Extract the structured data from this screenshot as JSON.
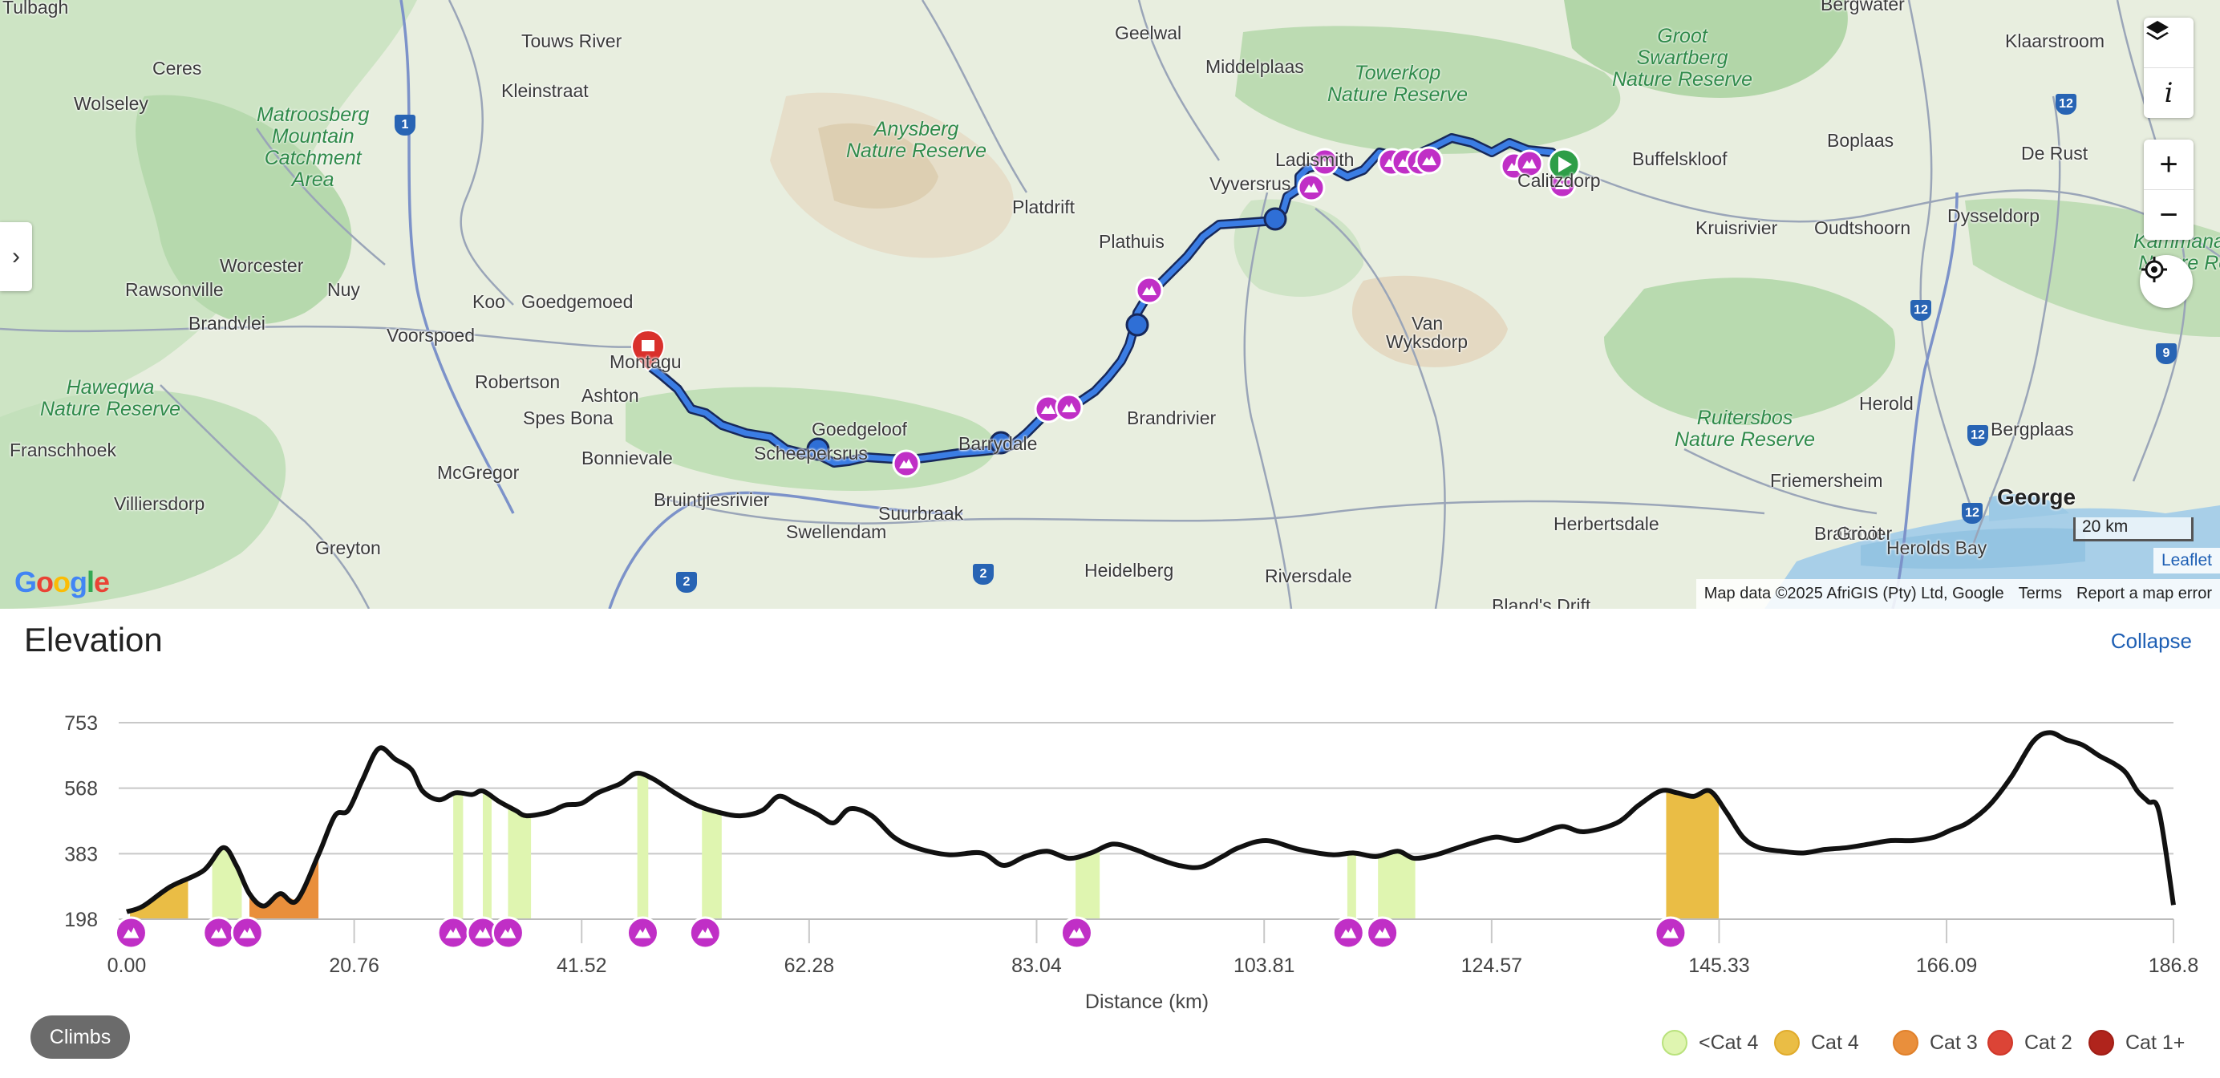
{
  "map": {
    "places": [
      {
        "name": "Tulbagh"
      },
      {
        "name": "Touws River"
      },
      {
        "name": "Geelwal"
      },
      {
        "name": "Bergwater"
      },
      {
        "name": "Ceres"
      },
      {
        "name": "Wolseley"
      },
      {
        "name": "Kleinstraat"
      },
      {
        "name": "Middelplaas"
      },
      {
        "name": "Klaarstroom"
      },
      {
        "name": "Buffelskloof"
      },
      {
        "name": "Boplaas"
      },
      {
        "name": "De Rust"
      },
      {
        "name": "Platdrift"
      },
      {
        "name": "Vyversrus"
      },
      {
        "name": "Ladismith"
      },
      {
        "name": "Calitzdorp"
      },
      {
        "name": "Plathuis"
      },
      {
        "name": "Kruisrivier"
      },
      {
        "name": "Oudtshoorn"
      },
      {
        "name": "Dysseldorp"
      },
      {
        "name": "Worcester"
      },
      {
        "name": "Rawsonville"
      },
      {
        "name": "Nuy"
      },
      {
        "name": "Koo"
      },
      {
        "name": "Goedgemoed"
      },
      {
        "name": "Brandvlei"
      },
      {
        "name": "Voorspoed"
      },
      {
        "name": "Van"
      },
      {
        "name": "Wyksdorp"
      },
      {
        "name": "Robertson"
      },
      {
        "name": "Montagu"
      },
      {
        "name": "Ashton"
      },
      {
        "name": "Spes Bona"
      },
      {
        "name": "Franschhoek"
      },
      {
        "name": "Goedgeloof"
      },
      {
        "name": "Scheepersrus"
      },
      {
        "name": "Barrydale"
      },
      {
        "name": "Brandrivier"
      },
      {
        "name": "Herold"
      },
      {
        "name": "Bergplaas"
      },
      {
        "name": "McGregor"
      },
      {
        "name": "Bonnievale"
      },
      {
        "name": "Villiersdorp"
      },
      {
        "name": "Friemersheim"
      },
      {
        "name": "Bruintjiesrivier"
      },
      {
        "name": "Suurbraak"
      },
      {
        "name": "Swellendam"
      },
      {
        "name": "George"
      },
      {
        "name": "Greyton"
      },
      {
        "name": "Herbertsdale"
      },
      {
        "name": "Brakrivier"
      },
      {
        "name": "Groot"
      },
      {
        "name": "Herolds Bay"
      },
      {
        "name": "Heidelberg"
      },
      {
        "name": "Riversdale"
      },
      {
        "name": "Bland's Drift"
      }
    ],
    "parks": [
      {
        "name": "Matroosberg\nMountain\nCatchment\nArea"
      },
      {
        "name": "Anysberg\nNature Reserve"
      },
      {
        "name": "Towerkop\nNature Reserve"
      },
      {
        "name": "Groot\nSwartberg\nNature Reserve"
      },
      {
        "name": "Kammanass\nNature Res"
      },
      {
        "name": "Haweqwa\nNature Reserve"
      },
      {
        "name": "Ruitersbos\nNature Reserve"
      }
    ],
    "shields": [
      "1",
      "12",
      "12",
      "9",
      "12",
      "12",
      "2",
      "2"
    ],
    "controls": {
      "layers_icon": "layers-icon",
      "info_label": "i",
      "zoom_in": "+",
      "zoom_out": "−",
      "locate_icon": "locate-icon",
      "sidebar_toggle": "›"
    },
    "scale_label": "20 km",
    "leaflet_label": "Leaflet",
    "google_logo": "Google",
    "attribution": {
      "data": "Map data ©2025 AfriGIS (Pty) Ltd, Google",
      "terms": "Terms",
      "report": "Report a map error"
    },
    "route_color": "#2f6fd6",
    "climb_marker_color": "#c02fc6",
    "start_color": "#2e9e48",
    "end_color": "#d9302c"
  },
  "elevation": {
    "title": "Elevation",
    "collapse_label": "Collapse",
    "climbs_button": "Climbs",
    "legend": [
      {
        "label": "<Cat 4",
        "color": "#dff5b0",
        "border": "#b9e27c"
      },
      {
        "label": "Cat 4",
        "color": "#eabd45",
        "border": "#e0ab2c"
      },
      {
        "label": "Cat 3",
        "color": "#e98f3c",
        "border": "#e0802a"
      },
      {
        "label": "Cat 2",
        "color": "#dc4436",
        "border": "#d0382a"
      },
      {
        "label": "Cat 1+",
        "color": "#b0241c",
        "border": "#a01e16"
      }
    ]
  },
  "chart_data": {
    "type": "area",
    "xlabel": "Distance (km)",
    "ylabel": "",
    "xlim": [
      0,
      186.8
    ],
    "ylim": [
      198,
      753
    ],
    "x_ticks": [
      "0.00",
      "20.76",
      "41.52",
      "62.28",
      "83.04",
      "103.81",
      "124.57",
      "145.33",
      "166.09",
      "186.8"
    ],
    "y_ticks": [
      "753",
      "568",
      "383",
      "198"
    ],
    "grid": true,
    "legend_position": "bottom-right",
    "profile": [
      [
        0,
        219
      ],
      [
        1.5,
        235
      ],
      [
        4,
        290
      ],
      [
        7,
        335
      ],
      [
        8.8,
        400
      ],
      [
        10,
        350
      ],
      [
        11.2,
        270
      ],
      [
        12.5,
        235
      ],
      [
        14,
        270
      ],
      [
        15.5,
        250
      ],
      [
        17.5,
        380
      ],
      [
        19,
        490
      ],
      [
        20.2,
        505
      ],
      [
        21.5,
        590
      ],
      [
        23,
        680
      ],
      [
        24.5,
        650
      ],
      [
        26,
        620
      ],
      [
        27,
        560
      ],
      [
        28.5,
        535
      ],
      [
        30,
        555
      ],
      [
        31.5,
        550
      ],
      [
        32.5,
        560
      ],
      [
        34,
        530
      ],
      [
        35.5,
        505
      ],
      [
        36.5,
        490
      ],
      [
        38.5,
        500
      ],
      [
        40,
        520
      ],
      [
        41.5,
        525
      ],
      [
        43,
        555
      ],
      [
        45,
        580
      ],
      [
        46.5,
        610
      ],
      [
        48,
        595
      ],
      [
        50,
        555
      ],
      [
        52,
        520
      ],
      [
        54,
        500
      ],
      [
        56,
        490
      ],
      [
        58,
        505
      ],
      [
        59.5,
        545
      ],
      [
        61,
        525
      ],
      [
        63,
        495
      ],
      [
        64.5,
        470
      ],
      [
        66,
        510
      ],
      [
        68,
        490
      ],
      [
        70,
        430
      ],
      [
        72,
        400
      ],
      [
        75,
        380
      ],
      [
        78,
        385
      ],
      [
        80,
        350
      ],
      [
        82,
        375
      ],
      [
        84,
        390
      ],
      [
        86,
        370
      ],
      [
        88,
        385
      ],
      [
        90,
        410
      ],
      [
        92,
        395
      ],
      [
        94,
        370
      ],
      [
        96,
        350
      ],
      [
        98,
        345
      ],
      [
        100,
        375
      ],
      [
        101.5,
        400
      ],
      [
        104,
        420
      ],
      [
        107,
        395
      ],
      [
        110,
        380
      ],
      [
        112,
        385
      ],
      [
        114,
        375
      ],
      [
        116,
        390
      ],
      [
        117.5,
        370
      ],
      [
        119.5,
        380
      ],
      [
        121,
        395
      ],
      [
        123,
        415
      ],
      [
        125,
        430
      ],
      [
        127,
        420
      ],
      [
        129,
        440
      ],
      [
        131,
        460
      ],
      [
        133,
        445
      ],
      [
        136,
        470
      ],
      [
        138,
        520
      ],
      [
        140,
        560
      ],
      [
        141.5,
        555
      ],
      [
        143,
        545
      ],
      [
        144.5,
        560
      ],
      [
        146,
        500
      ],
      [
        147.5,
        430
      ],
      [
        149,
        400
      ],
      [
        151,
        390
      ],
      [
        153,
        385
      ],
      [
        155,
        395
      ],
      [
        157,
        400
      ],
      [
        159,
        410
      ],
      [
        161,
        420
      ],
      [
        163,
        420
      ],
      [
        165,
        430
      ],
      [
        166.5,
        450
      ],
      [
        168,
        470
      ],
      [
        170,
        520
      ],
      [
        172,
        600
      ],
      [
        174,
        700
      ],
      [
        175.5,
        725
      ],
      [
        177,
        705
      ],
      [
        178.5,
        690
      ],
      [
        180,
        660
      ],
      [
        181.5,
        635
      ],
      [
        182.5,
        610
      ],
      [
        183.5,
        560
      ],
      [
        184.5,
        530
      ],
      [
        185.5,
        500
      ],
      [
        186.8,
        238
      ]
    ],
    "climbs": [
      {
        "start": 0.3,
        "end": 5.6,
        "category": "Cat 4"
      },
      {
        "start": 7.8,
        "end": 10.5,
        "category": "<Cat 4"
      },
      {
        "start": 11.2,
        "end": 17.5,
        "category": "Cat 3"
      },
      {
        "start": 29.8,
        "end": 30.7,
        "category": "<Cat 4"
      },
      {
        "start": 32.5,
        "end": 33.3,
        "category": "<Cat 4"
      },
      {
        "start": 34.8,
        "end": 36.9,
        "category": "<Cat 4"
      },
      {
        "start": 46.6,
        "end": 47.6,
        "category": "<Cat 4"
      },
      {
        "start": 52.5,
        "end": 54.3,
        "category": "<Cat 4"
      },
      {
        "start": 86.6,
        "end": 88.8,
        "category": "<Cat 4"
      },
      {
        "start": 111.4,
        "end": 112.2,
        "category": "<Cat 4"
      },
      {
        "start": 114.2,
        "end": 117.6,
        "category": "<Cat 4"
      },
      {
        "start": 140.5,
        "end": 145.3,
        "category": "Cat 4"
      }
    ],
    "climb_markers": [
      0.4,
      8.4,
      11.0,
      29.8,
      32.5,
      34.8,
      47.1,
      52.8,
      86.7,
      111.5,
      114.6,
      140.9
    ]
  }
}
